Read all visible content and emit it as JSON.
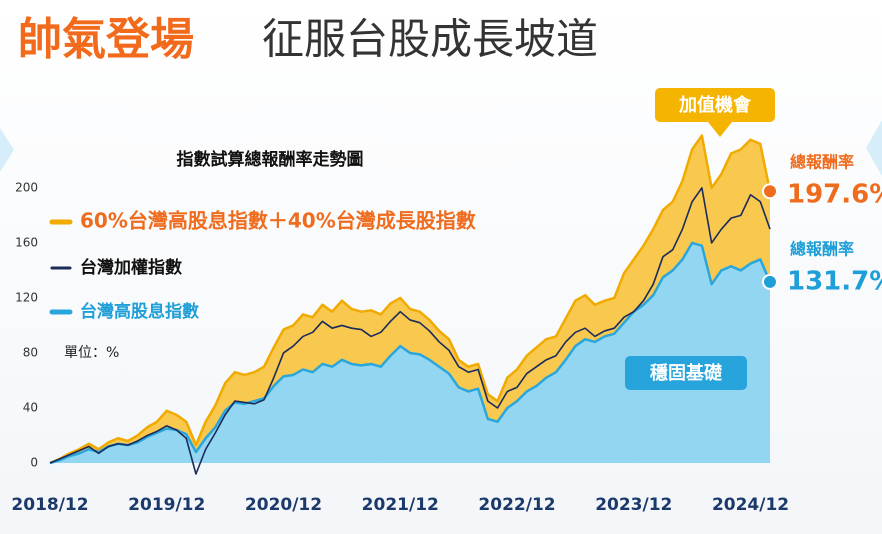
{
  "title_prefix": "帥氣登場",
  "title": "征服台股成長坡道",
  "chart_data": {
    "type": "area",
    "title": "指數試算總報酬率走勢圖",
    "unit_label": "單位：%",
    "x": [
      "2018/12",
      "2019/01",
      "2019/02",
      "2019/03",
      "2019/04",
      "2019/05",
      "2019/06",
      "2019/07",
      "2019/08",
      "2019/09",
      "2019/10",
      "2019/11",
      "2019/12",
      "2020/01",
      "2020/02",
      "2020/03",
      "2020/04",
      "2020/05",
      "2020/06",
      "2020/07",
      "2020/08",
      "2020/09",
      "2020/10",
      "2020/11",
      "2020/12",
      "2021/01",
      "2021/02",
      "2021/03",
      "2021/04",
      "2021/05",
      "2021/06",
      "2021/07",
      "2021/08",
      "2021/09",
      "2021/10",
      "2021/11",
      "2021/12",
      "2022/01",
      "2022/02",
      "2022/03",
      "2022/04",
      "2022/05",
      "2022/06",
      "2022/07",
      "2022/08",
      "2022/09",
      "2022/10",
      "2022/11",
      "2022/12",
      "2023/01",
      "2023/02",
      "2023/03",
      "2023/04",
      "2023/05",
      "2023/06",
      "2023/07",
      "2023/08",
      "2023/09",
      "2023/10",
      "2023/11",
      "2023/12",
      "2024/01",
      "2024/02",
      "2024/03",
      "2024/04",
      "2024/05",
      "2024/06",
      "2024/07",
      "2024/08",
      "2024/09",
      "2024/10",
      "2024/11",
      "2024/12",
      "2025/01",
      "2025/02"
    ],
    "xticks": [
      "2018/12",
      "2019/12",
      "2020/12",
      "2021/12",
      "2022/12",
      "2023/12",
      "2024/12"
    ],
    "ylim": [
      -10,
      245
    ],
    "yticks": [
      0,
      40,
      80,
      120,
      160,
      200
    ],
    "grid": false,
    "series": [
      {
        "name": "60%台灣高股息指數＋40%台灣成長股指數",
        "style": "area",
        "color": "#f9c84e",
        "line_color": "#f0aa00",
        "label_color": "#ef6c1e",
        "values": [
          0,
          3,
          7,
          10,
          14,
          10,
          15,
          18,
          16,
          20,
          26,
          30,
          38,
          35,
          30,
          13,
          30,
          42,
          58,
          66,
          64,
          66,
          70,
          84,
          97,
          100,
          108,
          106,
          115,
          110,
          118,
          112,
          110,
          111,
          108,
          116,
          120,
          112,
          110,
          104,
          96,
          90,
          75,
          70,
          72,
          50,
          45,
          62,
          68,
          78,
          84,
          90,
          92,
          105,
          118,
          122,
          115,
          118,
          120,
          138,
          148,
          158,
          170,
          184,
          190,
          205,
          228,
          238,
          200,
          210,
          225,
          228,
          235,
          232,
          197.6
        ],
        "value_labels": [
          null,
          null,
          null,
          null,
          null,
          null,
          null,
          null,
          null,
          null,
          null,
          null,
          null,
          null,
          null,
          null,
          null,
          null,
          null,
          null,
          null,
          null,
          null,
          null,
          null,
          null,
          null,
          null,
          null,
          null,
          null,
          null,
          null,
          null,
          null,
          null,
          null,
          null,
          null,
          null,
          null,
          null,
          null,
          null,
          null,
          null,
          null,
          null,
          null,
          null,
          null,
          null,
          null,
          null,
          null,
          null,
          null,
          null,
          null,
          null,
          null,
          null,
          null,
          null,
          null,
          null,
          null,
          null,
          null,
          null,
          null,
          null,
          null,
          null,
          "197.6%"
        ]
      },
      {
        "name": "台灣高股息指數",
        "style": "area",
        "color": "#93d6f2",
        "line_color": "#29a7dc",
        "label_color": "#1f9fd8",
        "values": [
          0,
          2,
          5,
          7,
          10,
          8,
          12,
          14,
          13,
          15,
          19,
          22,
          25,
          24,
          21,
          8,
          18,
          26,
          38,
          44,
          43,
          45,
          47,
          56,
          63,
          64,
          68,
          66,
          72,
          70,
          75,
          72,
          71,
          72,
          70,
          78,
          85,
          80,
          79,
          75,
          70,
          65,
          55,
          52,
          54,
          32,
          30,
          40,
          45,
          52,
          56,
          62,
          66,
          75,
          85,
          90,
          88,
          92,
          94,
          102,
          110,
          115,
          122,
          135,
          140,
          148,
          160,
          158,
          130,
          140,
          143,
          140,
          145,
          148,
          131.7
        ],
        "value_labels": [
          null,
          null,
          null,
          null,
          null,
          null,
          null,
          null,
          null,
          null,
          null,
          null,
          null,
          null,
          null,
          null,
          null,
          null,
          null,
          null,
          null,
          null,
          null,
          null,
          null,
          null,
          null,
          null,
          null,
          null,
          null,
          null,
          null,
          null,
          null,
          null,
          null,
          null,
          null,
          null,
          null,
          null,
          null,
          null,
          null,
          null,
          null,
          null,
          null,
          null,
          null,
          null,
          null,
          null,
          null,
          null,
          null,
          null,
          null,
          null,
          null,
          null,
          null,
          null,
          null,
          null,
          null,
          null,
          null,
          null,
          null,
          null,
          null,
          null,
          "131.7%"
        ]
      },
      {
        "name": "台灣加權指數",
        "style": "line",
        "color": "#1b2b5c",
        "line_color": "#1b2b5c",
        "label_color": "#111111",
        "values": [
          0,
          3,
          6,
          9,
          12,
          7,
          12,
          14,
          13,
          16,
          20,
          23,
          27,
          24,
          18,
          -8,
          10,
          22,
          35,
          45,
          44,
          43,
          46,
          62,
          80,
          85,
          92,
          95,
          103,
          98,
          100,
          98,
          97,
          92,
          95,
          103,
          110,
          104,
          102,
          96,
          88,
          82,
          70,
          66,
          68,
          45,
          40,
          52,
          55,
          65,
          70,
          75,
          78,
          88,
          95,
          98,
          92,
          96,
          98,
          106,
          110,
          118,
          130,
          150,
          155,
          170,
          190,
          200,
          160,
          170,
          178,
          180,
          195,
          190,
          170
        ]
      }
    ],
    "annotations": [
      "加值機會",
      "穩固基礎",
      "總報酬率",
      "總報酬率"
    ]
  }
}
